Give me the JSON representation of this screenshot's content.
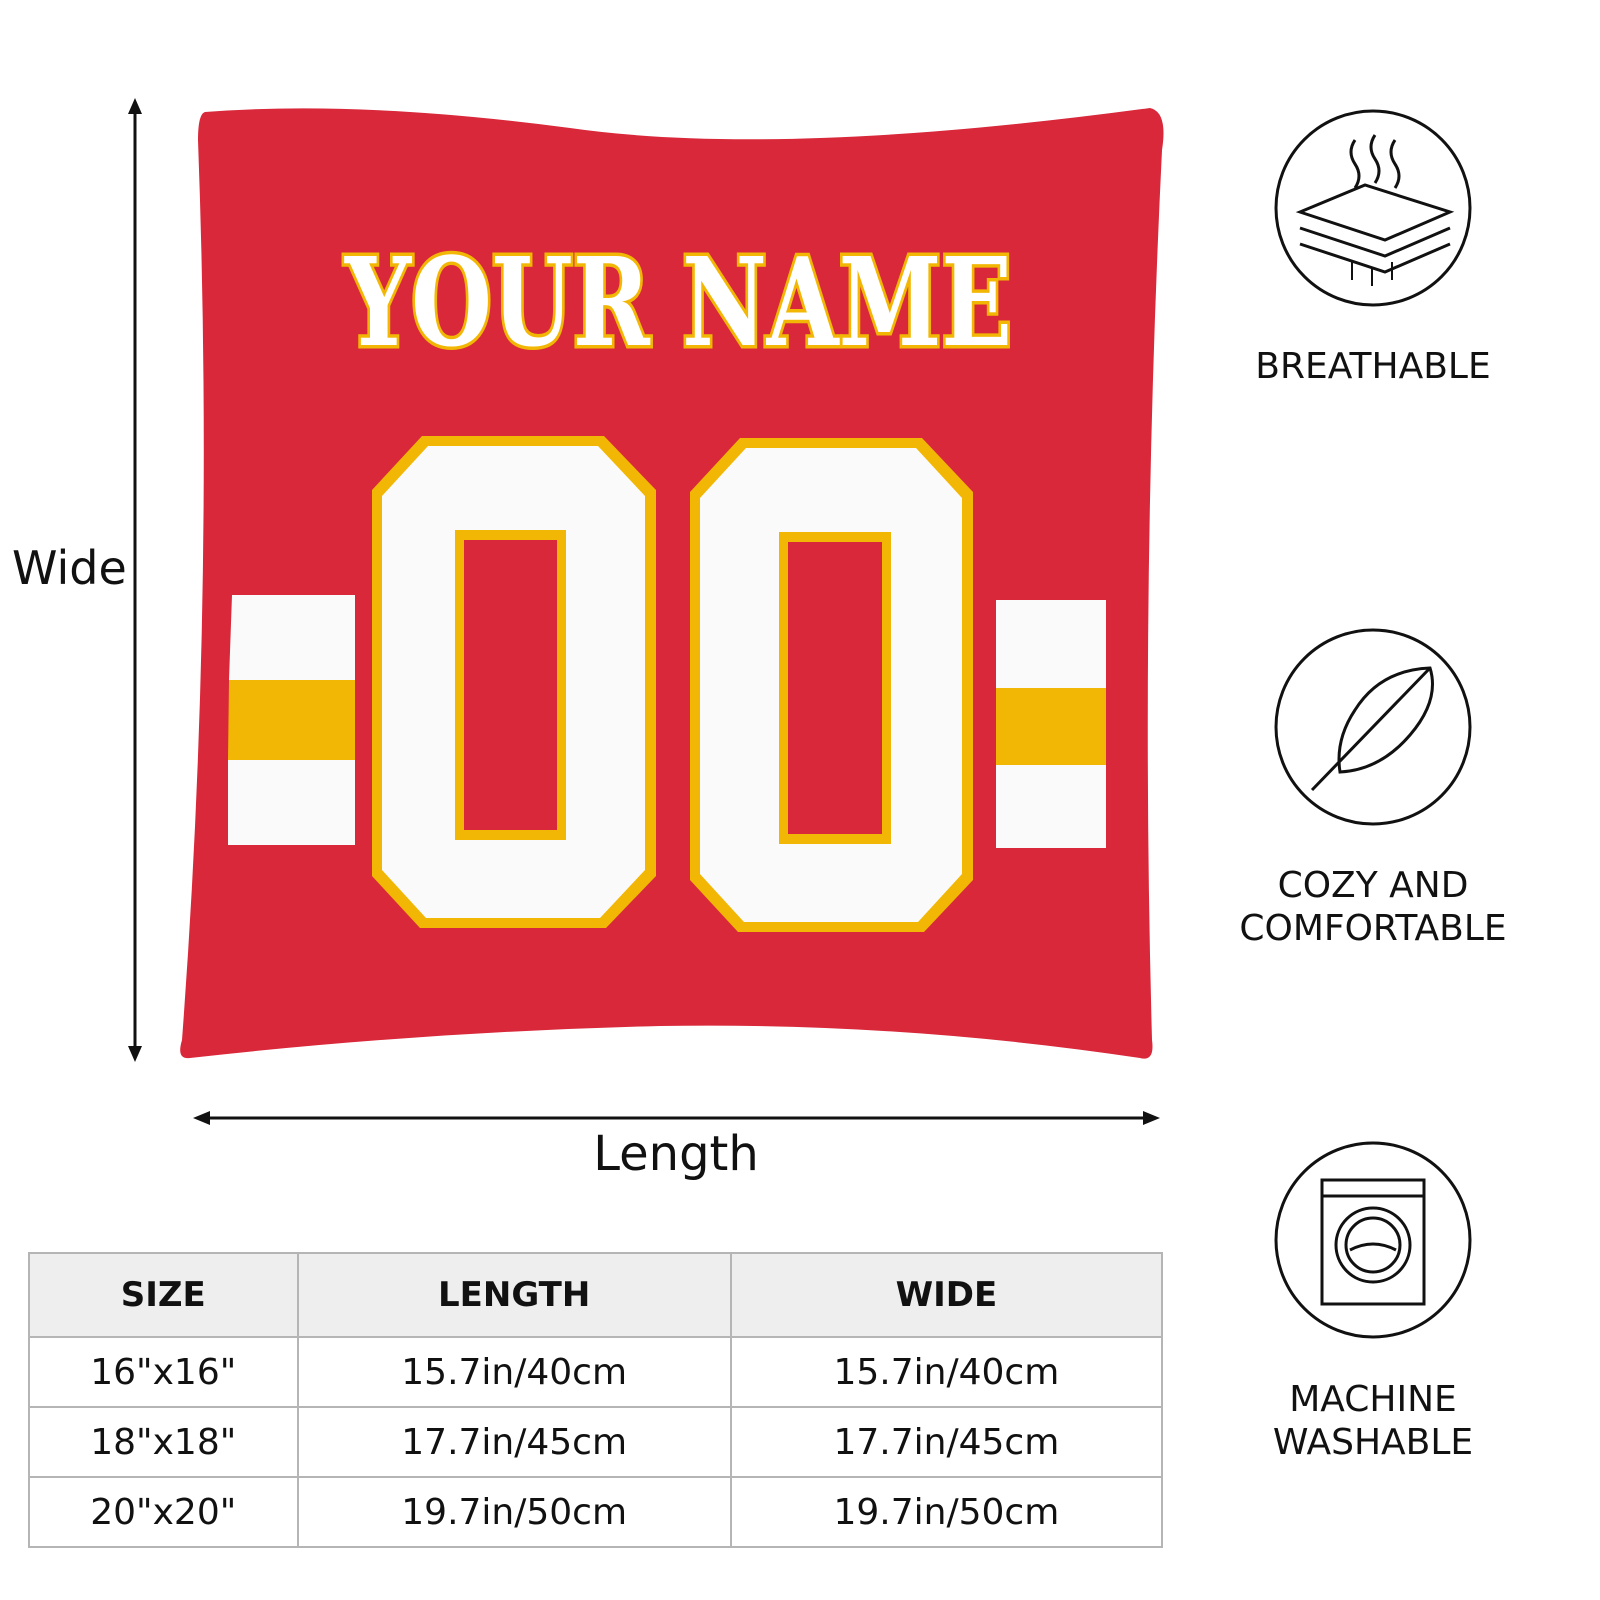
{
  "colors": {
    "red": "#d8283a",
    "gold": "#f2b705",
    "white": "#ffffff",
    "stroke": "#111111"
  },
  "pillow": {
    "name_text": "YOUR NAME",
    "number_text": "00"
  },
  "dimensions": {
    "wide_label": "Wide",
    "length_label": "Length"
  },
  "features": [
    {
      "icon": "breathable-layers-icon",
      "lines": [
        "BREATHABLE"
      ]
    },
    {
      "icon": "feather-icon",
      "lines": [
        "COZY AND",
        "COMFORTABLE"
      ]
    },
    {
      "icon": "washing-machine-icon",
      "lines": [
        "MACHINE",
        "WASHABLE"
      ]
    }
  ],
  "size_table": {
    "headers": [
      "SIZE",
      "LENGTH",
      "WIDE"
    ],
    "rows": [
      [
        "16\"x16\"",
        "15.7in/40cm",
        "15.7in/40cm"
      ],
      [
        "18\"x18\"",
        "17.7in/45cm",
        "17.7in/45cm"
      ],
      [
        "20\"x20\"",
        "19.7in/50cm",
        "19.7in/50cm"
      ]
    ]
  }
}
